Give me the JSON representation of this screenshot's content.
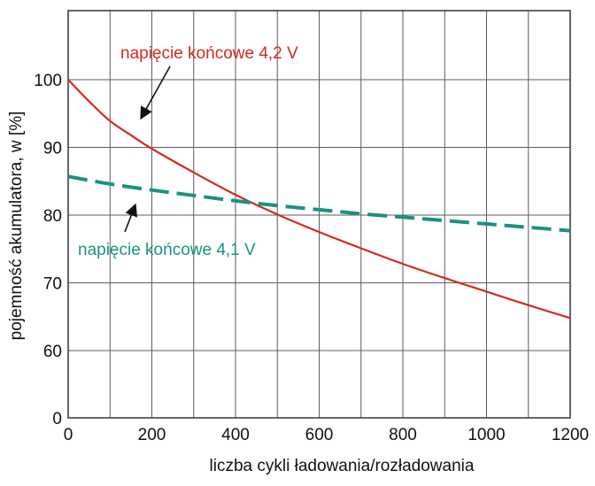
{
  "chart_data": {
    "type": "line",
    "title": "",
    "xlabel": "liczba cykli ładowania/rozładowania",
    "ylabel": "pojemność akumulatora, w [%]",
    "xlim": [
      0,
      1200
    ],
    "ylim": [
      0,
      100
    ],
    "x_ticks": [
      0,
      200,
      400,
      600,
      800,
      1000,
      1200
    ],
    "y_ticks": [
      0,
      60,
      70,
      80,
      90,
      100
    ],
    "x_tick_labels": [
      "0",
      "200",
      "400",
      "600",
      "800",
      "1000",
      "1200"
    ],
    "y_tick_labels": [
      "0",
      "60",
      "70",
      "80",
      "90",
      "100"
    ],
    "grid": true,
    "axis_break_y": "0-60",
    "series": [
      {
        "color": "#d42a1e",
        "style": "solid",
        "x": [
          0,
          50,
          100,
          150,
          200,
          300,
          400,
          500,
          600,
          700,
          800,
          900,
          1000,
          1100,
          1200
        ],
        "y": [
          100,
          96.8,
          93.9,
          91.8,
          89.8,
          86.3,
          83.0,
          80.1,
          77.5,
          75.1,
          72.8,
          70.7,
          68.7,
          66.7,
          64.8
        ]
      },
      {
        "color": "#1a9182",
        "style": "dashed",
        "x": [
          0,
          100,
          200,
          300,
          400,
          500,
          600,
          700,
          800,
          900,
          1000,
          1100,
          1200
        ],
        "y": [
          85.7,
          84.6,
          83.7,
          82.9,
          82.1,
          81.4,
          80.8,
          80.2,
          79.7,
          79.2,
          78.7,
          78.2,
          77.7
        ]
      }
    ],
    "annotations": [
      {
        "text": "napięcie końcowe 4,2 V",
        "color": "#d42a1e",
        "points_to": {
          "x": 170,
          "y": 90.6
        }
      },
      {
        "text": "napięcie końcowe 4,1 V",
        "color": "#1a9182",
        "points_to": {
          "x": 160,
          "y": 83.7
        }
      }
    ]
  }
}
